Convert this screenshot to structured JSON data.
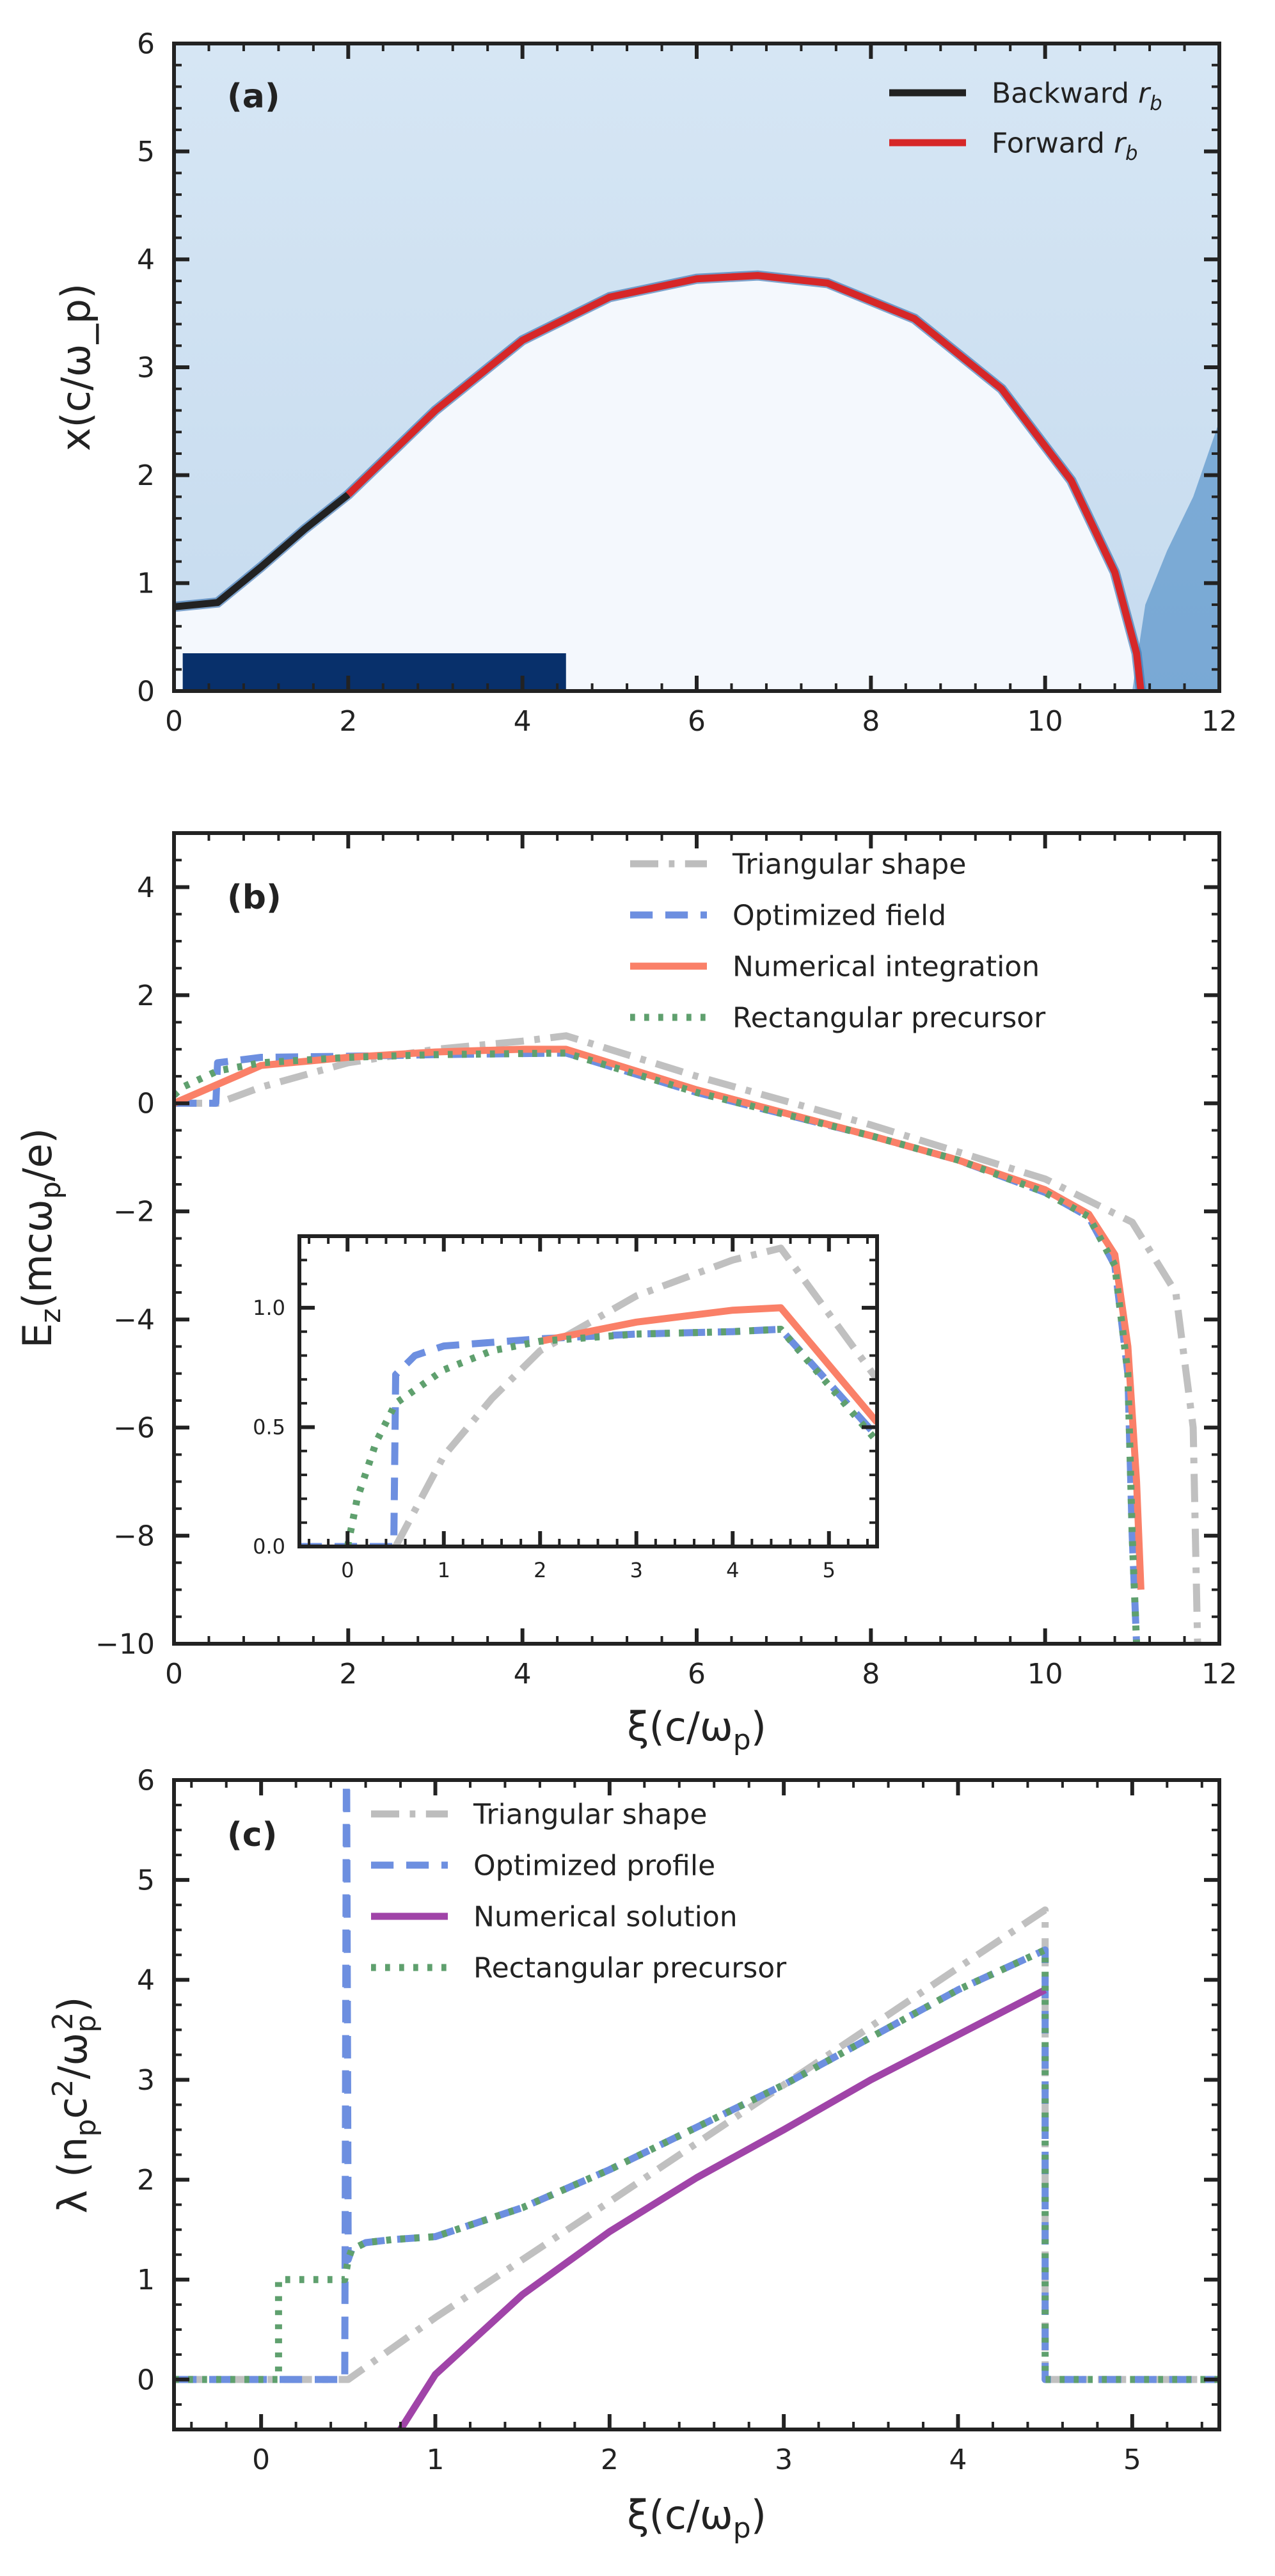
{
  "chart_data": [
    {
      "id": "a",
      "type": "heatmap",
      "panel_label": "(a)",
      "xlabel": "",
      "ylabel": "x(c/ω_p)",
      "xlim": [
        0,
        12
      ],
      "ylim": [
        0,
        6
      ],
      "x_ticks": [
        0,
        2,
        4,
        6,
        8,
        10,
        12
      ],
      "y_ticks": [
        0,
        1,
        2,
        3,
        4,
        5,
        6
      ],
      "legend": {
        "placement": "top-right",
        "entries": [
          {
            "label": "Backward r_b",
            "color": "#222222",
            "style": "solid"
          },
          {
            "label": "Forward r_b",
            "color": "#d62728",
            "style": "solid"
          }
        ]
      },
      "colormap": [
        "#f7fbff",
        "#c6dbef",
        "#6baed6",
        "#2171b5",
        "#08306b"
      ],
      "driver_bunch": {
        "x_range": [
          0.1,
          4.5
        ],
        "y_range": [
          0,
          0.35
        ],
        "color": "#08306b"
      },
      "series": [
        {
          "name": "Backward r_b",
          "color": "#222222",
          "x": [
            0,
            0.5,
            1.0,
            1.5,
            2.0
          ],
          "y": [
            0.78,
            0.82,
            1.15,
            1.5,
            1.82
          ]
        },
        {
          "name": "Forward r_b",
          "color": "#d62728",
          "x": [
            2.0,
            3.0,
            4.0,
            5.0,
            6.0,
            6.7,
            7.5,
            8.5,
            9.5,
            10.3,
            10.8,
            11.05,
            11.1
          ],
          "y": [
            1.82,
            2.6,
            3.25,
            3.65,
            3.82,
            3.85,
            3.78,
            3.45,
            2.8,
            1.95,
            1.1,
            0.35,
            0.0
          ]
        }
      ]
    },
    {
      "id": "b",
      "type": "line",
      "panel_label": "(b)",
      "xlabel": "ξ(c/ω_p)",
      "ylabel": "E_z(mcω_p/e)",
      "xlim": [
        0,
        12
      ],
      "ylim": [
        -10,
        5
      ],
      "x_ticks": [
        0,
        2,
        4,
        6,
        8,
        10,
        12
      ],
      "y_ticks": [
        -10,
        -8,
        -6,
        -4,
        -2,
        0,
        2,
        4
      ],
      "y_tick_labels": [
        "−10",
        "−8",
        "−6",
        "−4",
        "−2",
        "0",
        "2",
        "4"
      ],
      "legend": {
        "placement": "top-right",
        "entries": [
          {
            "label": "Triangular shape",
            "color": "#bdbdbd",
            "style": "dashdot"
          },
          {
            "label": "Optimized field",
            "color": "#6d8fe0",
            "style": "dashed"
          },
          {
            "label": "Numerical integration",
            "color": "#fa8068",
            "style": "solid"
          },
          {
            "label": "Rectangular precursor",
            "color": "#5fa06e",
            "style": "dotted"
          }
        ]
      },
      "series": [
        {
          "name": "Triangular shape",
          "color": "#bdbdbd",
          "x": [
            0,
            0.5,
            1,
            2,
            3,
            4,
            4.5,
            6,
            8,
            10,
            11,
            11.5,
            11.7,
            11.75
          ],
          "y": [
            0,
            0,
            0.3,
            0.75,
            1.0,
            1.15,
            1.25,
            0.5,
            -0.4,
            -1.4,
            -2.2,
            -3.5,
            -6,
            -10
          ]
        },
        {
          "name": "Optimized field",
          "color": "#6d8fe0",
          "x": [
            0,
            0.48,
            0.5,
            1,
            2,
            3,
            4,
            4.5,
            6,
            8,
            9,
            10,
            10.5,
            10.8,
            10.95,
            11.0,
            11.05
          ],
          "y": [
            0,
            0,
            0.75,
            0.85,
            0.87,
            0.9,
            0.92,
            0.93,
            0.2,
            -0.6,
            -1.05,
            -1.65,
            -2.1,
            -3,
            -5,
            -8,
            -10
          ]
        },
        {
          "name": "Numerical integration",
          "color": "#fa8068",
          "x": [
            0,
            1,
            2,
            3,
            4,
            4.5,
            6,
            8,
            9,
            10,
            10.5,
            10.8,
            10.95,
            11.05,
            11.1
          ],
          "y": [
            0,
            0.7,
            0.85,
            0.95,
            1.0,
            1.0,
            0.25,
            -0.6,
            -1.05,
            -1.6,
            -2.05,
            -2.8,
            -4.5,
            -7,
            -9
          ]
        },
        {
          "name": "Rectangular precursor",
          "color": "#5fa06e",
          "x": [
            0,
            0.1,
            0.5,
            1,
            2,
            3,
            4,
            4.5,
            6,
            8,
            9,
            10,
            10.5,
            10.8,
            10.95,
            11.0,
            11.05
          ],
          "y": [
            0.15,
            0.3,
            0.6,
            0.75,
            0.85,
            0.9,
            0.92,
            0.93,
            0.2,
            -0.6,
            -1.05,
            -1.65,
            -2.1,
            -3,
            -5,
            -8,
            -10
          ]
        }
      ],
      "inset": {
        "xlim": [
          -0.5,
          5.5
        ],
        "ylim": [
          0,
          1.3
        ],
        "x_ticks": [
          0,
          1,
          2,
          3,
          4,
          5
        ],
        "y_ticks": [
          0.0,
          0.5,
          1.0
        ],
        "y_tick_labels": [
          "0.0",
          "0.5",
          "1.0"
        ],
        "series": [
          {
            "name": "Triangular shape",
            "color": "#bdbdbd",
            "x": [
              0.5,
              1,
              1.5,
              2,
              3,
              4,
              4.5,
              5.5
            ],
            "y": [
              0.0,
              0.38,
              0.62,
              0.82,
              1.05,
              1.2,
              1.25,
              0.7
            ]
          },
          {
            "name": "Optimized field",
            "color": "#6d8fe0",
            "x": [
              -0.5,
              0.48,
              0.5,
              0.7,
              1,
              2,
              3,
              4,
              4.5,
              5.5
            ],
            "y": [
              0,
              0,
              0.72,
              0.8,
              0.84,
              0.87,
              0.89,
              0.9,
              0.91,
              0.46
            ]
          },
          {
            "name": "Numerical integration",
            "color": "#fa8068",
            "x": [
              2,
              3,
              4,
              4.5,
              5.5
            ],
            "y": [
              0.86,
              0.94,
              0.99,
              1.0,
              0.52
            ]
          },
          {
            "name": "Rectangular precursor",
            "color": "#5fa06e",
            "x": [
              0,
              0.1,
              0.3,
              0.5,
              1,
              1.5,
              2,
              3,
              4,
              4.5,
              5.5
            ],
            "y": [
              0,
              0.2,
              0.44,
              0.6,
              0.74,
              0.82,
              0.86,
              0.89,
              0.9,
              0.91,
              0.44
            ]
          }
        ]
      }
    },
    {
      "id": "c",
      "type": "line",
      "panel_label": "(c)",
      "xlabel": "ξ(c/ω_p)",
      "ylabel": "λ (n_p c²/ω_p²)",
      "xlim": [
        -0.5,
        5.5
      ],
      "ylim": [
        -0.5,
        6
      ],
      "x_ticks": [
        0,
        1,
        2,
        3,
        4,
        5
      ],
      "y_ticks": [
        0,
        1,
        2,
        3,
        4,
        5,
        6
      ],
      "legend": {
        "placement": "top-left",
        "entries": [
          {
            "label": "Triangular shape",
            "color": "#bdbdbd",
            "style": "dashdot"
          },
          {
            "label": "Optimized profile",
            "color": "#6d8fe0",
            "style": "dashed"
          },
          {
            "label": "Numerical solution",
            "color": "#a044a8",
            "style": "solid"
          },
          {
            "label": "Rectangular precursor",
            "color": "#5fa06e",
            "style": "dotted"
          }
        ]
      },
      "series": [
        {
          "name": "Triangular shape",
          "color": "#bdbdbd",
          "x": [
            -0.5,
            0.5,
            1,
            2,
            3,
            4,
            4.5,
            4.5,
            5.5
          ],
          "y": [
            0,
            0,
            0.62,
            1.78,
            2.95,
            4.12,
            4.7,
            0,
            0
          ]
        },
        {
          "name": "Optimized profile",
          "color": "#6d8fe0",
          "x": [
            -0.5,
            0.48,
            0.49,
            0.5,
            0.52,
            0.6,
            0.75,
            1.0,
            1.5,
            2.0,
            3.0,
            4.0,
            4.5,
            4.5,
            5.5
          ],
          "y": [
            0,
            0,
            6.5,
            1.2,
            1.3,
            1.37,
            1.4,
            1.43,
            1.72,
            2.1,
            2.95,
            3.9,
            4.3,
            0,
            0
          ]
        },
        {
          "name": "Numerical solution",
          "color": "#a044a8",
          "x": [
            0.8,
            1.0,
            1.5,
            2.0,
            2.5,
            3.0,
            3.5,
            4.0,
            4.5
          ],
          "y": [
            -0.5,
            0.05,
            0.85,
            1.48,
            2.02,
            2.5,
            3.0,
            3.45,
            3.9
          ]
        },
        {
          "name": "Rectangular precursor",
          "color": "#5fa06e",
          "x": [
            -0.5,
            0.1,
            0.1,
            0.48,
            0.5,
            0.52,
            0.6,
            0.75,
            1.0,
            1.5,
            2.0,
            3.0,
            4.0,
            4.5,
            4.5,
            5.5
          ],
          "y": [
            0,
            0,
            1.0,
            1.0,
            1.2,
            1.3,
            1.37,
            1.4,
            1.43,
            1.72,
            2.1,
            2.95,
            3.9,
            4.3,
            0,
            0
          ]
        }
      ]
    }
  ]
}
